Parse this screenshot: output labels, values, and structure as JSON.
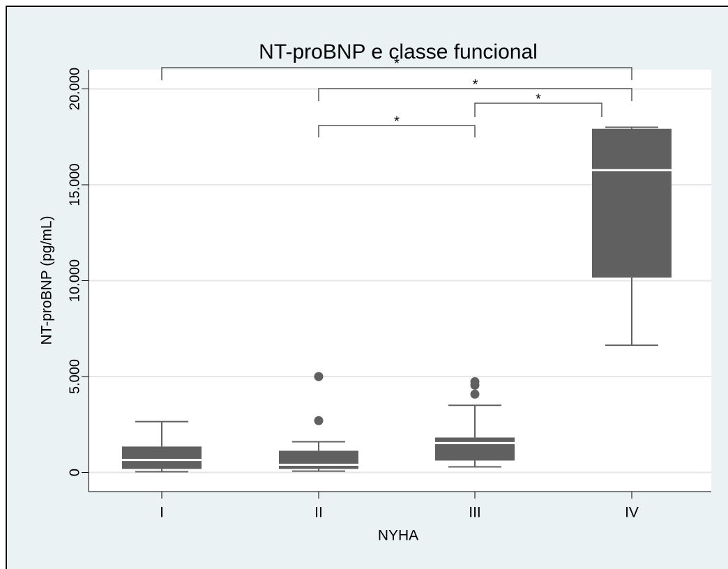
{
  "chart_data": {
    "type": "box",
    "title": "NT-proBNP e classe funcional",
    "x_label": "NYHA",
    "y_label": "NT-proBNP (pg/mL)",
    "categories": [
      "I",
      "II",
      "III",
      "IV"
    ],
    "color": "#606060",
    "median_color": "#ffffff",
    "boxes": [
      {
        "low": 36,
        "q1": 180,
        "median": 650,
        "q3": 1350,
        "high": 2650,
        "outliers": []
      },
      {
        "low": 70,
        "q1": 180,
        "median": 400,
        "q3": 1130,
        "high": 1600,
        "outliers": [
          2700,
          5000
        ]
      },
      {
        "low": 290,
        "q1": 620,
        "median": 1530,
        "q3": 1820,
        "high": 3500,
        "outliers": [
          4080,
          4550,
          4730
        ]
      },
      {
        "low": 6630,
        "q1": 10160,
        "median": 15770,
        "q3": 17920,
        "high": 18000,
        "outliers": []
      }
    ],
    "ylim": [
      -1000,
      21000
    ],
    "yticks": [
      0,
      {
        "value": 5000,
        "label": "5.000"
      },
      {
        "value": 10000,
        "label": "10.000"
      },
      {
        "value": 15000,
        "label": "15.000"
      },
      {
        "value": 20000,
        "label": "20.000"
      }
    ],
    "grid": true,
    "annotations": [
      {
        "text": "*",
        "between": [
          "I",
          "IV"
        ]
      },
      {
        "text": "*",
        "between": [
          "II",
          "IV"
        ]
      },
      {
        "text": "*",
        "between": [
          "III",
          "IV"
        ]
      },
      {
        "text": "*",
        "between": [
          "II",
          "III"
        ]
      }
    ]
  }
}
